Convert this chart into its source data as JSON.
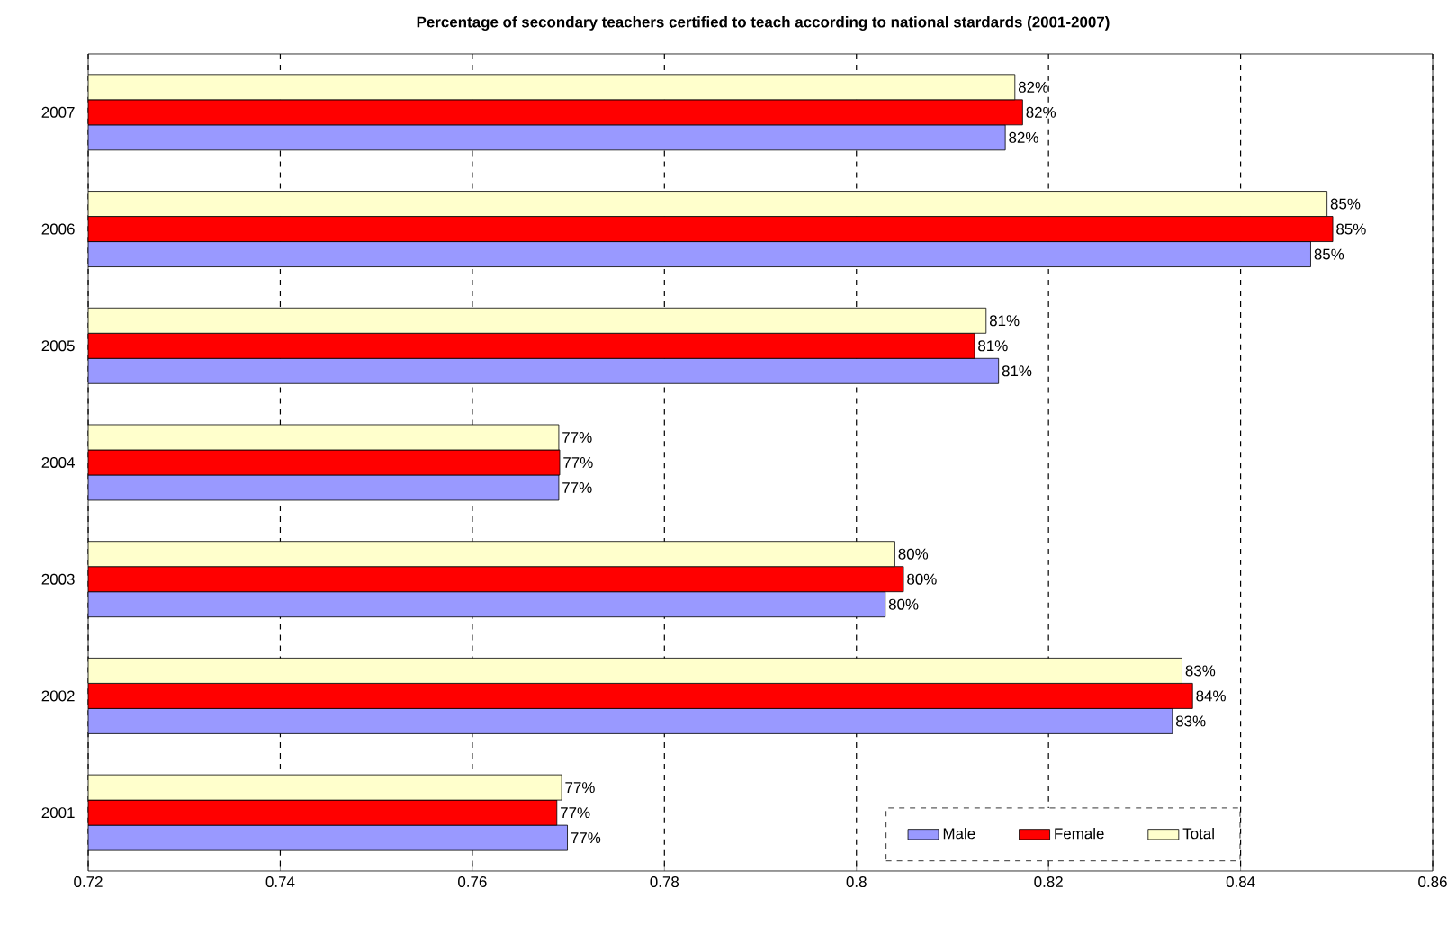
{
  "chart_data": {
    "type": "bar",
    "orientation": "horizontal",
    "title": "Percentage of secondary teachers certified to teach according to national stardards (2001-2007)",
    "categories": [
      "2007",
      "2006",
      "2005",
      "2004",
      "2003",
      "2002",
      "2001"
    ],
    "series": [
      {
        "name": "Male",
        "color": "#9999ff",
        "values": [
          0.8155,
          0.8473,
          0.8148,
          0.769,
          0.803,
          0.8329,
          0.7699
        ],
        "value_labels": [
          "82%",
          "85%",
          "81%",
          "77%",
          "80%",
          "83%",
          "77%"
        ]
      },
      {
        "name": "Female",
        "color": "#ff0000",
        "values": [
          0.8173,
          0.8496,
          0.8123,
          0.7691,
          0.8049,
          0.835,
          0.7688
        ],
        "value_labels": [
          "82%",
          "85%",
          "81%",
          "77%",
          "80%",
          "84%",
          "77%"
        ]
      },
      {
        "name": "Total",
        "color": "#ffffcc",
        "values": [
          0.8165,
          0.849,
          0.8135,
          0.769,
          0.804,
          0.8339,
          0.7693
        ],
        "value_labels": [
          "82%",
          "85%",
          "81%",
          "77%",
          "80%",
          "83%",
          "77%"
        ]
      }
    ],
    "xlim": [
      0.72,
      0.86
    ],
    "xticks": [
      0.72,
      0.74,
      0.76,
      0.78,
      0.8,
      0.82,
      0.84,
      0.86
    ],
    "grid": "x",
    "legend": "bottom right"
  }
}
